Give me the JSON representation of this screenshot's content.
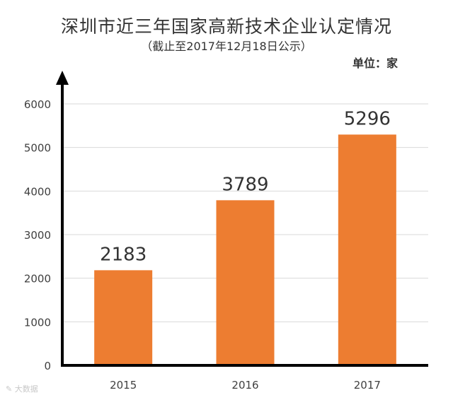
{
  "header": {
    "title": "深圳市近三年国家高新技术企业认定情况",
    "subtitle": "（截止至2017年12月18日公示）",
    "unit": "单位：家"
  },
  "watermark": "大数据",
  "colors": {
    "bar": "#ED7D31",
    "axis": "#000000",
    "grid": "#D9D9D9",
    "tick_text": "#404040"
  },
  "chart_data": {
    "type": "bar",
    "title": "深圳市近三年国家高新技术企业认定情况",
    "subtitle": "（截止至2017年12月18日公示）",
    "ylabel": "单位：家",
    "xlabel": "",
    "categories": [
      "2015",
      "2016",
      "2017"
    ],
    "values": [
      2183,
      3789,
      5296
    ],
    "ylim": [
      0,
      6000
    ],
    "yticks": [
      0,
      1000,
      2000,
      3000,
      4000,
      5000,
      6000
    ],
    "grid": true,
    "data_labels": true
  }
}
